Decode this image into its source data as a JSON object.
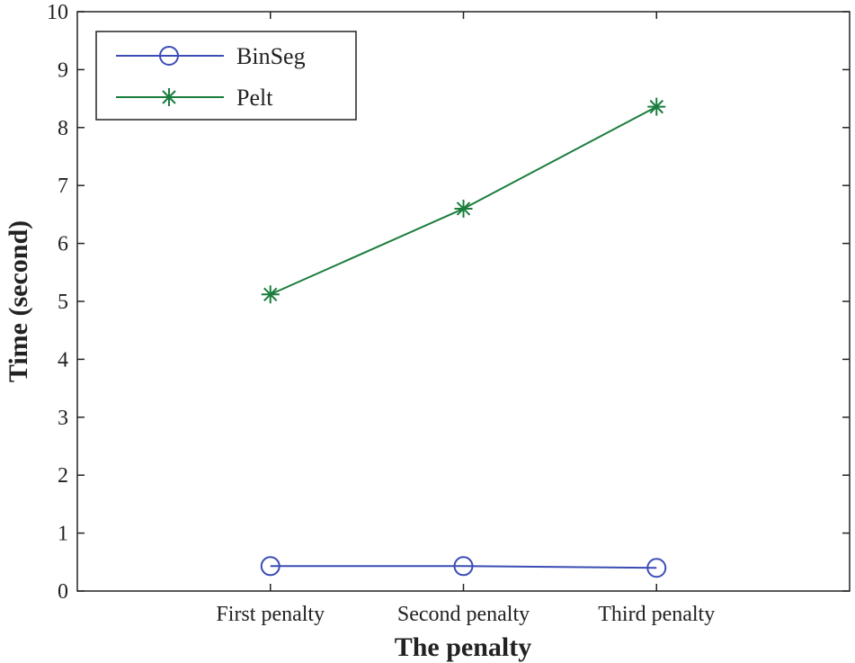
{
  "chart_data": {
    "type": "line",
    "title": "",
    "xlabel": "The penalty",
    "ylabel": "Time (second)",
    "categories": [
      "First penalty",
      "Second penalty",
      "Third penalty"
    ],
    "ylim": [
      0,
      10
    ],
    "yticks": [
      0,
      1,
      2,
      3,
      4,
      5,
      6,
      7,
      8,
      9,
      10
    ],
    "grid": false,
    "legend_position": "top-left",
    "series": [
      {
        "name": "BinSeg",
        "values": [
          0.43,
          0.43,
          0.4
        ],
        "color": "#3b4db5",
        "marker": "circle"
      },
      {
        "name": "Pelt",
        "values": [
          5.12,
          6.6,
          8.36
        ],
        "color": "#1a7d3c",
        "marker": "asterisk"
      }
    ]
  }
}
